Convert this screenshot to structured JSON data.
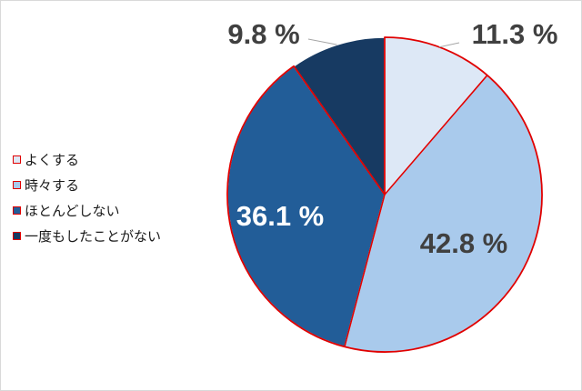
{
  "chart_data": {
    "type": "pie",
    "title": "",
    "categories": [
      "よくする",
      "時々する",
      "ほとんどしない",
      "一度もしたことがない"
    ],
    "values": [
      11.3,
      42.8,
      36.1,
      9.8
    ],
    "value_labels": [
      "11.3 %",
      "42.8 %",
      "36.1 %",
      "9.8 %"
    ],
    "colors": [
      "#dde8f6",
      "#a9caec",
      "#225d98",
      "#173a62"
    ],
    "highlight_outline_color": "#e00000",
    "start_angle": "12 o'clock",
    "direction": "clockwise",
    "legend_position": "left"
  }
}
